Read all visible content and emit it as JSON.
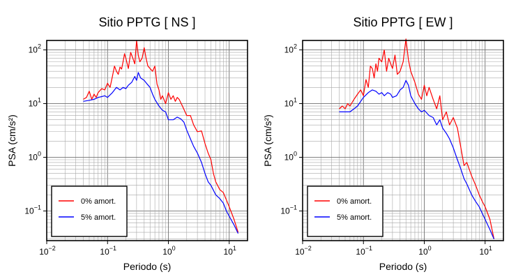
{
  "chart_data": [
    {
      "type": "line",
      "title": "Sitio PPTG [ NS ]",
      "xlabel": "Periodo (s)",
      "ylabel": "PSA (cm/s²)",
      "xscale": "log",
      "yscale": "log",
      "xlim": [
        0.01,
        20
      ],
      "ylim": [
        0.028,
        150
      ],
      "grid": true,
      "legend_position": "bottom-left",
      "x_ticks": [
        {
          "value": 0.01,
          "base": "10",
          "exp": "−2"
        },
        {
          "value": 0.1,
          "base": "10",
          "exp": "−1"
        },
        {
          "value": 1,
          "base": "10",
          "exp": "0"
        },
        {
          "value": 10,
          "base": "10",
          "exp": "1"
        }
      ],
      "y_ticks": [
        {
          "value": 0.1,
          "base": "10",
          "exp": "−1"
        },
        {
          "value": 1,
          "base": "10",
          "exp": "0"
        },
        {
          "value": 10,
          "base": "10",
          "exp": "1"
        },
        {
          "value": 100,
          "base": "10",
          "exp": "2"
        }
      ],
      "series": [
        {
          "name": "0% amort.",
          "color": "#ff0000",
          "x": [
            0.04,
            0.045,
            0.05,
            0.055,
            0.06,
            0.065,
            0.07,
            0.08,
            0.09,
            0.1,
            0.11,
            0.12,
            0.13,
            0.14,
            0.15,
            0.16,
            0.17,
            0.18,
            0.19,
            0.2,
            0.22,
            0.24,
            0.26,
            0.28,
            0.3,
            0.32,
            0.34,
            0.37,
            0.4,
            0.43,
            0.46,
            0.5,
            0.55,
            0.6,
            0.65,
            0.7,
            0.75,
            0.8,
            0.9,
            1.0,
            1.1,
            1.2,
            1.3,
            1.4,
            1.5,
            1.7,
            2.0,
            2.3,
            2.6,
            3.0,
            3.5,
            4.0,
            4.5,
            5.0,
            5.5,
            6.0,
            7.0,
            8.0,
            9.0,
            10.0,
            12.0,
            14.0
          ],
          "y": [
            12,
            13,
            17,
            12,
            15,
            13,
            16,
            19,
            18,
            24,
            20,
            32,
            50,
            40,
            35,
            48,
            44,
            60,
            85,
            70,
            45,
            90,
            70,
            55,
            150,
            80,
            60,
            70,
            110,
            70,
            50,
            45,
            40,
            50,
            23,
            18,
            12,
            14,
            10,
            16,
            12,
            14,
            11,
            13,
            12,
            9,
            6,
            6,
            4,
            3,
            3.1,
            1.8,
            1.2,
            0.9,
            0.5,
            0.35,
            0.25,
            0.22,
            0.16,
            0.12,
            0.07,
            0.04
          ]
        },
        {
          "name": "5% amort.",
          "color": "#0000ff",
          "x": [
            0.04,
            0.05,
            0.06,
            0.07,
            0.08,
            0.09,
            0.1,
            0.12,
            0.14,
            0.16,
            0.18,
            0.2,
            0.22,
            0.25,
            0.28,
            0.3,
            0.32,
            0.35,
            0.4,
            0.45,
            0.5,
            0.55,
            0.6,
            0.7,
            0.8,
            0.9,
            1.0,
            1.2,
            1.4,
            1.6,
            1.8,
            2.0,
            2.3,
            2.6,
            3.0,
            3.5,
            4.0,
            4.5,
            5.0,
            6.0,
            7.0,
            8.0,
            9.0,
            10.0,
            12.0,
            14.0
          ],
          "y": [
            11,
            11.5,
            12,
            13,
            13.5,
            14,
            13,
            16,
            20,
            18,
            20,
            19,
            22,
            25,
            32,
            27,
            38,
            30,
            27,
            23,
            20,
            15,
            12,
            9,
            7.5,
            7,
            5,
            5,
            5.6,
            5.2,
            4.5,
            3.2,
            2.2,
            1.6,
            1.2,
            0.8,
            0.5,
            0.35,
            0.3,
            0.2,
            0.17,
            0.14,
            0.1,
            0.08,
            0.055,
            0.038
          ]
        }
      ]
    },
    {
      "type": "line",
      "title": "Sitio PPTG [ EW ]",
      "xlabel": "Periodo (s)",
      "ylabel": "PSA (cm/s²)",
      "xscale": "log",
      "yscale": "log",
      "xlim": [
        0.01,
        20
      ],
      "ylim": [
        0.028,
        150
      ],
      "grid": true,
      "legend_position": "bottom-left",
      "x_ticks": [
        {
          "value": 0.01,
          "base": "10",
          "exp": "−2"
        },
        {
          "value": 0.1,
          "base": "10",
          "exp": "−1"
        },
        {
          "value": 1,
          "base": "10",
          "exp": "0"
        },
        {
          "value": 10,
          "base": "10",
          "exp": "1"
        }
      ],
      "y_ticks": [
        {
          "value": 0.1,
          "base": "10",
          "exp": "−1"
        },
        {
          "value": 1,
          "base": "10",
          "exp": "0"
        },
        {
          "value": 10,
          "base": "10",
          "exp": "1"
        },
        {
          "value": 100,
          "base": "10",
          "exp": "2"
        }
      ],
      "series": [
        {
          "name": "0% amort.",
          "color": "#ff0000",
          "x": [
            0.04,
            0.045,
            0.05,
            0.055,
            0.06,
            0.07,
            0.08,
            0.09,
            0.1,
            0.11,
            0.12,
            0.13,
            0.14,
            0.15,
            0.16,
            0.17,
            0.18,
            0.2,
            0.22,
            0.24,
            0.26,
            0.28,
            0.3,
            0.33,
            0.36,
            0.4,
            0.45,
            0.5,
            0.55,
            0.6,
            0.7,
            0.8,
            0.9,
            1.0,
            1.1,
            1.2,
            1.4,
            1.6,
            1.8,
            2.0,
            2.3,
            2.6,
            3.0,
            3.5,
            4.0,
            4.5,
            5.0,
            6.0,
            7.0,
            8.0,
            9.0,
            10.0,
            12.0,
            14.0
          ],
          "y": [
            8,
            9,
            8,
            10,
            9,
            12,
            15,
            18,
            14,
            28,
            20,
            50,
            45,
            30,
            55,
            40,
            70,
            60,
            100,
            40,
            70,
            55,
            45,
            80,
            35,
            40,
            60,
            160,
            65,
            40,
            25,
            15,
            12,
            22,
            14,
            20,
            12,
            8,
            14,
            5,
            7,
            4,
            5.5,
            3.5,
            1.5,
            0.7,
            0.8,
            0.45,
            0.3,
            0.2,
            0.15,
            0.12,
            0.07,
            0.03
          ]
        },
        {
          "name": "5% amort.",
          "color": "#0000ff",
          "x": [
            0.04,
            0.05,
            0.06,
            0.07,
            0.08,
            0.09,
            0.1,
            0.12,
            0.14,
            0.16,
            0.18,
            0.2,
            0.22,
            0.25,
            0.28,
            0.3,
            0.35,
            0.4,
            0.45,
            0.5,
            0.55,
            0.6,
            0.7,
            0.8,
            0.9,
            1.0,
            1.2,
            1.4,
            1.6,
            1.8,
            2.0,
            2.3,
            2.6,
            3.0,
            3.5,
            4.0,
            4.5,
            5.0,
            6.0,
            7.0,
            8.0,
            9.0,
            10.0,
            12.0,
            14.0
          ],
          "y": [
            7,
            7,
            7,
            8,
            9,
            11,
            13,
            16,
            18,
            17,
            15,
            16,
            14,
            16,
            15,
            13,
            14,
            18,
            20,
            27,
            22,
            14,
            10,
            8,
            7,
            7.5,
            6,
            5.5,
            4,
            5,
            3.5,
            2.8,
            2.2,
            1.5,
            0.9,
            0.6,
            0.4,
            0.32,
            0.2,
            0.15,
            0.12,
            0.09,
            0.07,
            0.045,
            0.03
          ]
        }
      ]
    }
  ]
}
